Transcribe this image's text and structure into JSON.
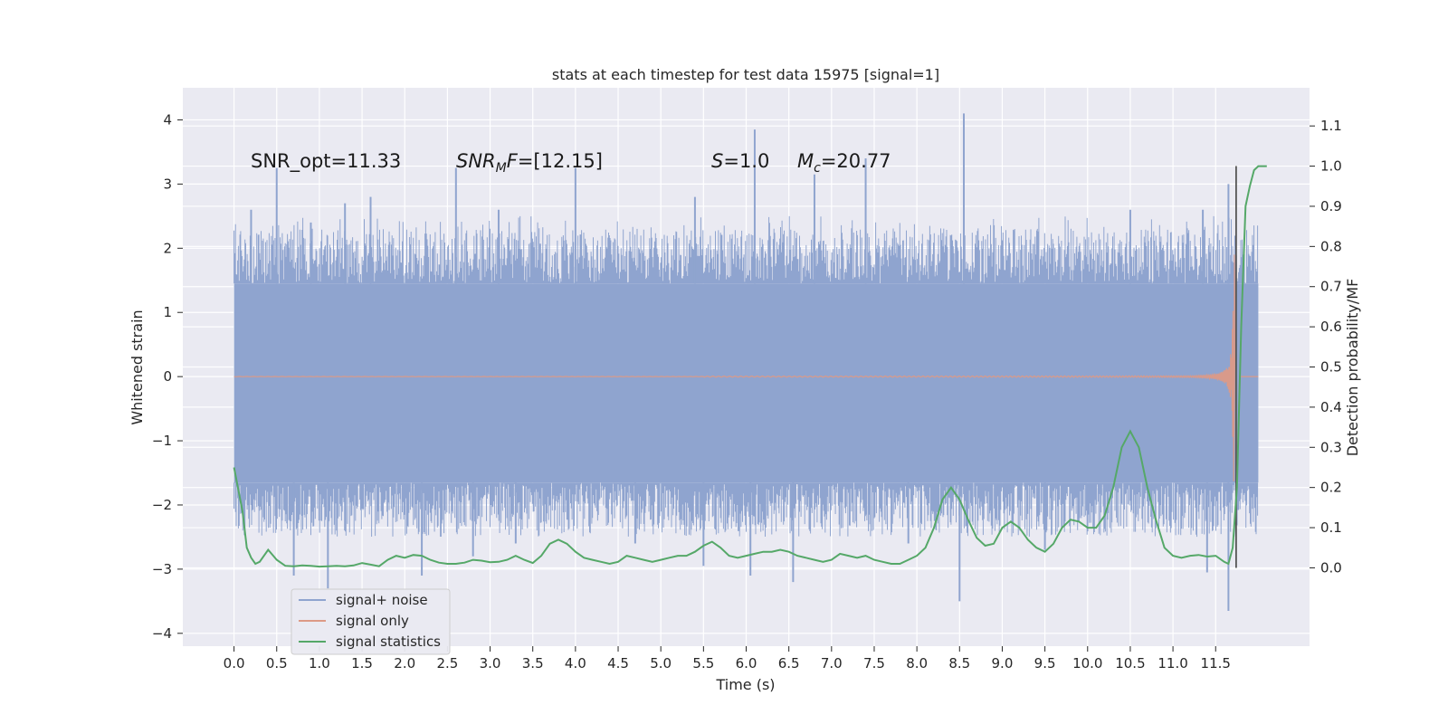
{
  "chart_data": {
    "type": "line",
    "title": "stats at each timestep for test data 15975 [signal=1]",
    "xlabel": "Time (s)",
    "ylabel_left": "Whitened strain",
    "ylabel_right": "Detection probability/MF",
    "xlim": [
      -0.6,
      12.6
    ],
    "ylim_left": [
      -4.2,
      4.5
    ],
    "ylim_right": [
      -0.195,
      1.195
    ],
    "x_ticks": [
      0.0,
      0.5,
      1.0,
      1.5,
      2.0,
      2.5,
      3.0,
      3.5,
      4.0,
      4.5,
      5.0,
      5.5,
      6.0,
      6.5,
      7.0,
      7.5,
      8.0,
      8.5,
      9.0,
      9.5,
      10.0,
      10.5,
      11.0,
      11.5
    ],
    "x_tick_labels": [
      "0.0",
      "0.5",
      "1.0",
      "1.5",
      "2.0",
      "2.5",
      "3.0",
      "3.5",
      "4.0",
      "4.5",
      "5.0",
      "5.5",
      "6.0",
      "6.5",
      "7.0",
      "7.5",
      "8.0",
      "8.5",
      "9.0",
      "9.5",
      "10.0",
      "10.5",
      "11.0",
      "11.5"
    ],
    "y_left_ticks": [
      4,
      3,
      2,
      1,
      0,
      -1,
      -2,
      -3,
      -4
    ],
    "y_left_tick_labels": [
      "4",
      "3",
      "2",
      "1",
      "0",
      "−1",
      "−2",
      "−3",
      "−4"
    ],
    "y_right_ticks": [
      1.1,
      1.0,
      0.9,
      0.8,
      0.7,
      0.6,
      0.5,
      0.4,
      0.3,
      0.2,
      0.1,
      0.0
    ],
    "y_right_tick_labels": [
      "1.1",
      "1.0",
      "0.9",
      "0.8",
      "0.7",
      "0.6",
      "0.5",
      "0.4",
      "0.3",
      "0.2",
      "0.1",
      "0.0"
    ],
    "grid": true,
    "legend_position": "lower-left",
    "annotations": {
      "snr_opt": "SNR_opt=11.33",
      "snr_mf": "=[12.15]",
      "snr_mf_symbol": "SNR",
      "snr_mf_subscript": "M",
      "snr_mf_suffix": "F",
      "s_value": "=1.0",
      "s_symbol": "S",
      "mc_value": "=20.77",
      "mc_symbol": "M",
      "mc_subscript": "c"
    },
    "noise_band": {
      "t_start": 0.0,
      "t_end": 12.0,
      "dense_upper": 1.45,
      "dense_lower": -1.65,
      "typical_peak": 2.0,
      "peak_samples": [
        [
          0.2,
          2.6
        ],
        [
          0.5,
          3.25
        ],
        [
          0.9,
          2.4
        ],
        [
          1.3,
          2.7
        ],
        [
          1.6,
          2.8
        ],
        [
          2.6,
          3.25
        ],
        [
          3.1,
          2.6
        ],
        [
          4.0,
          3.25
        ],
        [
          5.4,
          2.8
        ],
        [
          6.1,
          3.85
        ],
        [
          6.8,
          3.15
        ],
        [
          7.4,
          3.4
        ],
        [
          8.55,
          4.1
        ],
        [
          10.5,
          2.6
        ],
        [
          11.35,
          2.6
        ],
        [
          11.65,
          3.0
        ],
        [
          0.7,
          -3.1
        ],
        [
          1.1,
          -3.3
        ],
        [
          2.2,
          -3.1
        ],
        [
          2.8,
          -2.8
        ],
        [
          5.5,
          -2.95
        ],
        [
          6.05,
          -3.1
        ],
        [
          6.55,
          -3.2
        ],
        [
          8.5,
          -3.5
        ],
        [
          9.5,
          -2.7
        ],
        [
          11.4,
          -3.05
        ],
        [
          11.65,
          -3.65
        ],
        [
          3.3,
          -2.6
        ],
        [
          4.7,
          -2.6
        ],
        [
          7.9,
          -2.6
        ]
      ]
    },
    "series": [
      {
        "name": "signal+ noise",
        "color": "#8fa4cf",
        "axis": "left"
      },
      {
        "name": "signal only",
        "color": "#dd9a86",
        "axis": "left",
        "chirp": {
          "t_merge": 11.72,
          "t_ramp_start": 5.5,
          "max_amplitude": 1.9,
          "min_amplitude": -2.0
        }
      },
      {
        "name": "signal statistics",
        "color": "#55a868",
        "axis": "right",
        "points": [
          [
            0.0,
            0.25
          ],
          [
            0.1,
            0.14
          ],
          [
            0.15,
            0.05
          ],
          [
            0.2,
            0.025
          ],
          [
            0.25,
            0.01
          ],
          [
            0.3,
            0.015
          ],
          [
            0.4,
            0.045
          ],
          [
            0.5,
            0.02
          ],
          [
            0.6,
            0.005
          ],
          [
            0.7,
            0.004
          ],
          [
            0.8,
            0.006
          ],
          [
            0.9,
            0.005
          ],
          [
            1.0,
            0.003
          ],
          [
            1.1,
            0.004
          ],
          [
            1.2,
            0.005
          ],
          [
            1.3,
            0.004
          ],
          [
            1.4,
            0.006
          ],
          [
            1.5,
            0.012
          ],
          [
            1.6,
            0.008
          ],
          [
            1.7,
            0.004
          ],
          [
            1.8,
            0.02
          ],
          [
            1.9,
            0.03
          ],
          [
            2.0,
            0.025
          ],
          [
            2.1,
            0.032
          ],
          [
            2.2,
            0.03
          ],
          [
            2.3,
            0.02
          ],
          [
            2.4,
            0.013
          ],
          [
            2.5,
            0.01
          ],
          [
            2.6,
            0.01
          ],
          [
            2.7,
            0.013
          ],
          [
            2.8,
            0.02
          ],
          [
            2.9,
            0.018
          ],
          [
            3.0,
            0.014
          ],
          [
            3.1,
            0.015
          ],
          [
            3.2,
            0.02
          ],
          [
            3.3,
            0.03
          ],
          [
            3.4,
            0.02
          ],
          [
            3.5,
            0.012
          ],
          [
            3.6,
            0.03
          ],
          [
            3.7,
            0.06
          ],
          [
            3.8,
            0.07
          ],
          [
            3.9,
            0.06
          ],
          [
            4.0,
            0.04
          ],
          [
            4.1,
            0.025
          ],
          [
            4.2,
            0.02
          ],
          [
            4.3,
            0.015
          ],
          [
            4.4,
            0.01
          ],
          [
            4.5,
            0.015
          ],
          [
            4.6,
            0.03
          ],
          [
            4.7,
            0.025
          ],
          [
            4.8,
            0.02
          ],
          [
            4.9,
            0.015
          ],
          [
            5.0,
            0.02
          ],
          [
            5.1,
            0.025
          ],
          [
            5.2,
            0.03
          ],
          [
            5.3,
            0.03
          ],
          [
            5.4,
            0.04
          ],
          [
            5.5,
            0.055
          ],
          [
            5.6,
            0.065
          ],
          [
            5.7,
            0.05
          ],
          [
            5.8,
            0.03
          ],
          [
            5.9,
            0.025
          ],
          [
            6.0,
            0.03
          ],
          [
            6.1,
            0.035
          ],
          [
            6.2,
            0.04
          ],
          [
            6.3,
            0.04
          ],
          [
            6.4,
            0.045
          ],
          [
            6.5,
            0.04
          ],
          [
            6.6,
            0.03
          ],
          [
            6.7,
            0.025
          ],
          [
            6.8,
            0.02
          ],
          [
            6.9,
            0.015
          ],
          [
            7.0,
            0.02
          ],
          [
            7.1,
            0.035
          ],
          [
            7.2,
            0.03
          ],
          [
            7.3,
            0.025
          ],
          [
            7.4,
            0.03
          ],
          [
            7.5,
            0.02
          ],
          [
            7.6,
            0.015
          ],
          [
            7.7,
            0.01
          ],
          [
            7.8,
            0.01
          ],
          [
            7.9,
            0.02
          ],
          [
            8.0,
            0.03
          ],
          [
            8.1,
            0.05
          ],
          [
            8.2,
            0.1
          ],
          [
            8.3,
            0.17
          ],
          [
            8.4,
            0.2
          ],
          [
            8.5,
            0.17
          ],
          [
            8.6,
            0.12
          ],
          [
            8.7,
            0.075
          ],
          [
            8.8,
            0.055
          ],
          [
            8.9,
            0.06
          ],
          [
            9.0,
            0.1
          ],
          [
            9.1,
            0.115
          ],
          [
            9.2,
            0.1
          ],
          [
            9.3,
            0.07
          ],
          [
            9.4,
            0.05
          ],
          [
            9.5,
            0.04
          ],
          [
            9.6,
            0.06
          ],
          [
            9.7,
            0.1
          ],
          [
            9.8,
            0.12
          ],
          [
            9.9,
            0.115
          ],
          [
            10.0,
            0.1
          ],
          [
            10.1,
            0.1
          ],
          [
            10.2,
            0.13
          ],
          [
            10.3,
            0.2
          ],
          [
            10.4,
            0.3
          ],
          [
            10.5,
            0.34
          ],
          [
            10.6,
            0.3
          ],
          [
            10.7,
            0.2
          ],
          [
            10.8,
            0.12
          ],
          [
            10.9,
            0.05
          ],
          [
            11.0,
            0.03
          ],
          [
            11.1,
            0.025
          ],
          [
            11.2,
            0.03
          ],
          [
            11.3,
            0.032
          ],
          [
            11.4,
            0.028
          ],
          [
            11.5,
            0.03
          ],
          [
            11.6,
            0.015
          ],
          [
            11.65,
            0.01
          ],
          [
            11.7,
            0.05
          ],
          [
            11.75,
            0.2
          ],
          [
            11.8,
            0.6
          ],
          [
            11.85,
            0.9
          ],
          [
            11.9,
            0.95
          ],
          [
            11.95,
            0.99
          ],
          [
            12.0,
            1.0
          ],
          [
            12.05,
            1.0
          ],
          [
            12.1,
            1.0
          ]
        ]
      }
    ],
    "merger_marker_time": 11.74
  }
}
